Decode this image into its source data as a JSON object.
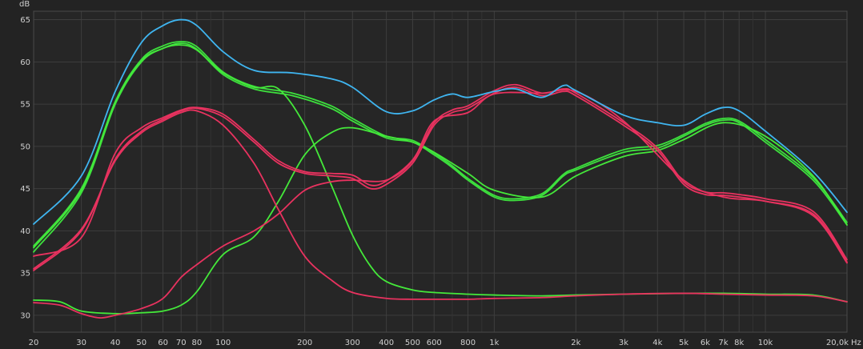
{
  "chart_data": {
    "type": "line",
    "title": "",
    "xlabel": "",
    "ylabel": "",
    "y_unit": "dB",
    "x_unit": "Hz",
    "x_scale": "log",
    "xlim": [
      20,
      20000
    ],
    "ylim": [
      28,
      66
    ],
    "grid": true,
    "legend": "none",
    "x_ticks": [
      {
        "v": 20,
        "label": "20"
      },
      {
        "v": 30,
        "label": "30"
      },
      {
        "v": 40,
        "label": "40"
      },
      {
        "v": 50,
        "label": "50"
      },
      {
        "v": 60,
        "label": "60"
      },
      {
        "v": 70,
        "label": "70"
      },
      {
        "v": 80,
        "label": "80"
      },
      {
        "v": 100,
        "label": "100"
      },
      {
        "v": 200,
        "label": "200"
      },
      {
        "v": 300,
        "label": "300"
      },
      {
        "v": 400,
        "label": "400"
      },
      {
        "v": 500,
        "label": "500"
      },
      {
        "v": 600,
        "label": "600"
      },
      {
        "v": 800,
        "label": "800"
      },
      {
        "v": 1000,
        "label": "1k"
      },
      {
        "v": 2000,
        "label": "2k"
      },
      {
        "v": 3000,
        "label": "3k"
      },
      {
        "v": 4000,
        "label": "4k"
      },
      {
        "v": 5000,
        "label": "5k"
      },
      {
        "v": 6000,
        "label": "6k"
      },
      {
        "v": 7000,
        "label": "7k"
      },
      {
        "v": 8000,
        "label": "8k"
      },
      {
        "v": 10000,
        "label": "10k"
      },
      {
        "v": 20000,
        "label": "20,0k"
      }
    ],
    "x_minor": [
      90,
      700,
      900,
      9000
    ],
    "y_ticks": [
      30,
      35,
      40,
      45,
      50,
      55,
      60,
      65
    ],
    "series": [
      {
        "color": "#3fb5f0",
        "x": [
          20,
          30,
          40,
          50,
          60,
          70,
          80,
          100,
          130,
          180,
          250,
          300,
          400,
          500,
          600,
          700,
          800,
          1000,
          1200,
          1500,
          1800,
          2000,
          3000,
          4000,
          5000,
          6000,
          7000,
          8000,
          10000,
          15000,
          20000
        ],
        "y": [
          40.8,
          46.5,
          56.5,
          62.3,
          64.3,
          65.0,
          64.3,
          61.2,
          59.0,
          58.7,
          58.0,
          57.0,
          54.1,
          54.2,
          55.5,
          56.2,
          55.8,
          56.5,
          56.8,
          55.8,
          57.2,
          56.6,
          53.7,
          52.8,
          52.5,
          53.8,
          54.6,
          54.2,
          51.8,
          47.0,
          42.2
        ]
      },
      {
        "color": "#3de03d",
        "x": [
          20,
          30,
          40,
          50,
          60,
          70,
          80,
          100,
          130,
          180,
          250,
          300,
          400,
          500,
          600,
          700,
          800,
          1000,
          1200,
          1500,
          1800,
          2000,
          3000,
          4000,
          5000,
          6000,
          7000,
          8000,
          10000,
          15000,
          20000
        ],
        "y": [
          37.5,
          44.5,
          55.0,
          60.0,
          61.6,
          62.2,
          61.5,
          58.5,
          56.8,
          56.0,
          54.5,
          53.0,
          51.0,
          50.5,
          49.0,
          47.5,
          46.0,
          44.0,
          43.6,
          44.2,
          46.5,
          47.2,
          49.3,
          49.8,
          51.2,
          52.5,
          53.1,
          52.8,
          50.5,
          46.0,
          40.7
        ]
      },
      {
        "color": "#3de03d",
        "x": [
          20,
          30,
          40,
          50,
          60,
          70,
          80,
          100,
          130,
          180,
          250,
          300,
          400,
          500,
          600,
          700,
          800,
          1000,
          1200,
          1500,
          1800,
          2000,
          3000,
          4000,
          5000,
          6000,
          7000,
          8000,
          10000,
          15000,
          20000
        ],
        "y": [
          38.2,
          45.0,
          55.3,
          60.3,
          61.9,
          62.4,
          61.8,
          58.8,
          57.1,
          56.3,
          54.8,
          53.3,
          51.2,
          50.7,
          49.2,
          47.7,
          46.2,
          44.2,
          43.8,
          44.4,
          46.7,
          47.4,
          49.6,
          50.1,
          51.4,
          52.7,
          53.3,
          53.0,
          50.8,
          46.3,
          41.0
        ]
      },
      {
        "color": "#44e83a",
        "x": [
          20,
          25,
          30,
          40,
          50,
          60,
          70,
          80,
          100,
          130,
          160,
          200,
          250,
          300,
          400,
          500,
          600,
          800,
          1000,
          1500,
          2000,
          3000,
          4000,
          5000,
          7000,
          10000,
          15000,
          20000
        ],
        "y": [
          31.8,
          31.6,
          30.5,
          30.2,
          30.3,
          30.5,
          31.2,
          32.8,
          37.2,
          39.3,
          43.5,
          49.0,
          51.6,
          52.2,
          51.2,
          50.5,
          49.3,
          46.8,
          44.8,
          44.0,
          46.5,
          48.8,
          49.5,
          50.8,
          52.8,
          51.2,
          46.5,
          40.7
        ]
      },
      {
        "color": "#44e83a",
        "x": [
          20,
          30,
          40,
          50,
          60,
          70,
          80,
          100,
          130,
          160,
          200,
          250,
          300,
          350,
          400,
          500,
          600,
          800,
          1000,
          1500,
          2000,
          3000,
          5000,
          7000,
          10000,
          15000,
          20000
        ],
        "y": [
          38.0,
          44.8,
          55.2,
          60.1,
          61.6,
          62.0,
          61.4,
          58.7,
          57.0,
          56.8,
          52.5,
          45.5,
          39.5,
          35.8,
          34.0,
          33.0,
          32.7,
          32.5,
          32.4,
          32.3,
          32.4,
          32.5,
          32.6,
          32.6,
          32.5,
          32.4,
          31.6
        ]
      },
      {
        "color": "#e8325f",
        "x": [
          20,
          30,
          40,
          50,
          60,
          70,
          80,
          100,
          130,
          160,
          200,
          250,
          300,
          350,
          400,
          500,
          600,
          700,
          800,
          1000,
          1200,
          1500,
          1800,
          2000,
          3000,
          4000,
          5000,
          6000,
          7000,
          8000,
          10000,
          15000,
          20000
        ],
        "y": [
          35.3,
          40.0,
          48.5,
          51.8,
          53.2,
          54.2,
          54.5,
          53.5,
          50.5,
          48.0,
          46.8,
          46.5,
          46.2,
          45.0,
          45.5,
          48.0,
          52.5,
          54.0,
          54.5,
          56.3,
          57.0,
          56.0,
          56.5,
          56.0,
          52.5,
          49.5,
          45.5,
          44.3,
          44.2,
          44.0,
          43.5,
          42.0,
          36.3
        ]
      },
      {
        "color": "#e8325f",
        "x": [
          20,
          30,
          40,
          50,
          60,
          70,
          80,
          100,
          130,
          160,
          200,
          250,
          300,
          350,
          400,
          500,
          600,
          700,
          800,
          1000,
          1200,
          1500,
          1800,
          2000,
          3000,
          4000,
          5000,
          6000,
          7000,
          8000,
          10000,
          15000,
          20000
        ],
        "y": [
          37.0,
          39.2,
          49.2,
          52.2,
          53.4,
          54.3,
          54.6,
          53.8,
          50.8,
          48.3,
          47.0,
          46.8,
          46.6,
          45.4,
          45.9,
          48.4,
          52.8,
          54.3,
          54.8,
          56.6,
          57.3,
          56.3,
          56.8,
          56.3,
          52.8,
          49.8,
          45.8,
          44.6,
          44.5,
          44.3,
          43.8,
          42.3,
          36.6
        ]
      },
      {
        "color": "#e8325f",
        "x": [
          20,
          25,
          30,
          35,
          40,
          50,
          60,
          70,
          80,
          100,
          130,
          160,
          200,
          250,
          300,
          400,
          500,
          600,
          800,
          1000,
          1500,
          2000,
          3000,
          5000,
          7000,
          10000,
          15000,
          20000
        ],
        "y": [
          31.5,
          31.2,
          30.2,
          29.7,
          30.0,
          30.8,
          32.0,
          34.5,
          36.0,
          38.2,
          40.0,
          42.0,
          44.8,
          45.8,
          46.0,
          46.0,
          48.3,
          53.0,
          54.0,
          56.2,
          56.3,
          56.5,
          53.0,
          46.0,
          44.0,
          43.5,
          41.8,
          36.2
        ]
      },
      {
        "color": "#e8325f",
        "x": [
          20,
          30,
          40,
          50,
          60,
          70,
          80,
          100,
          130,
          160,
          200,
          250,
          300,
          400,
          500,
          600,
          800,
          1000,
          1500,
          2000,
          3000,
          5000,
          7000,
          10000,
          15000,
          20000
        ],
        "y": [
          35.5,
          40.2,
          48.3,
          51.6,
          53.0,
          54.0,
          54.2,
          52.5,
          48.0,
          42.5,
          37.0,
          34.2,
          32.7,
          32.0,
          31.9,
          31.9,
          31.9,
          32.0,
          32.1,
          32.3,
          32.5,
          32.6,
          32.5,
          32.4,
          32.3,
          31.6
        ]
      }
    ]
  }
}
